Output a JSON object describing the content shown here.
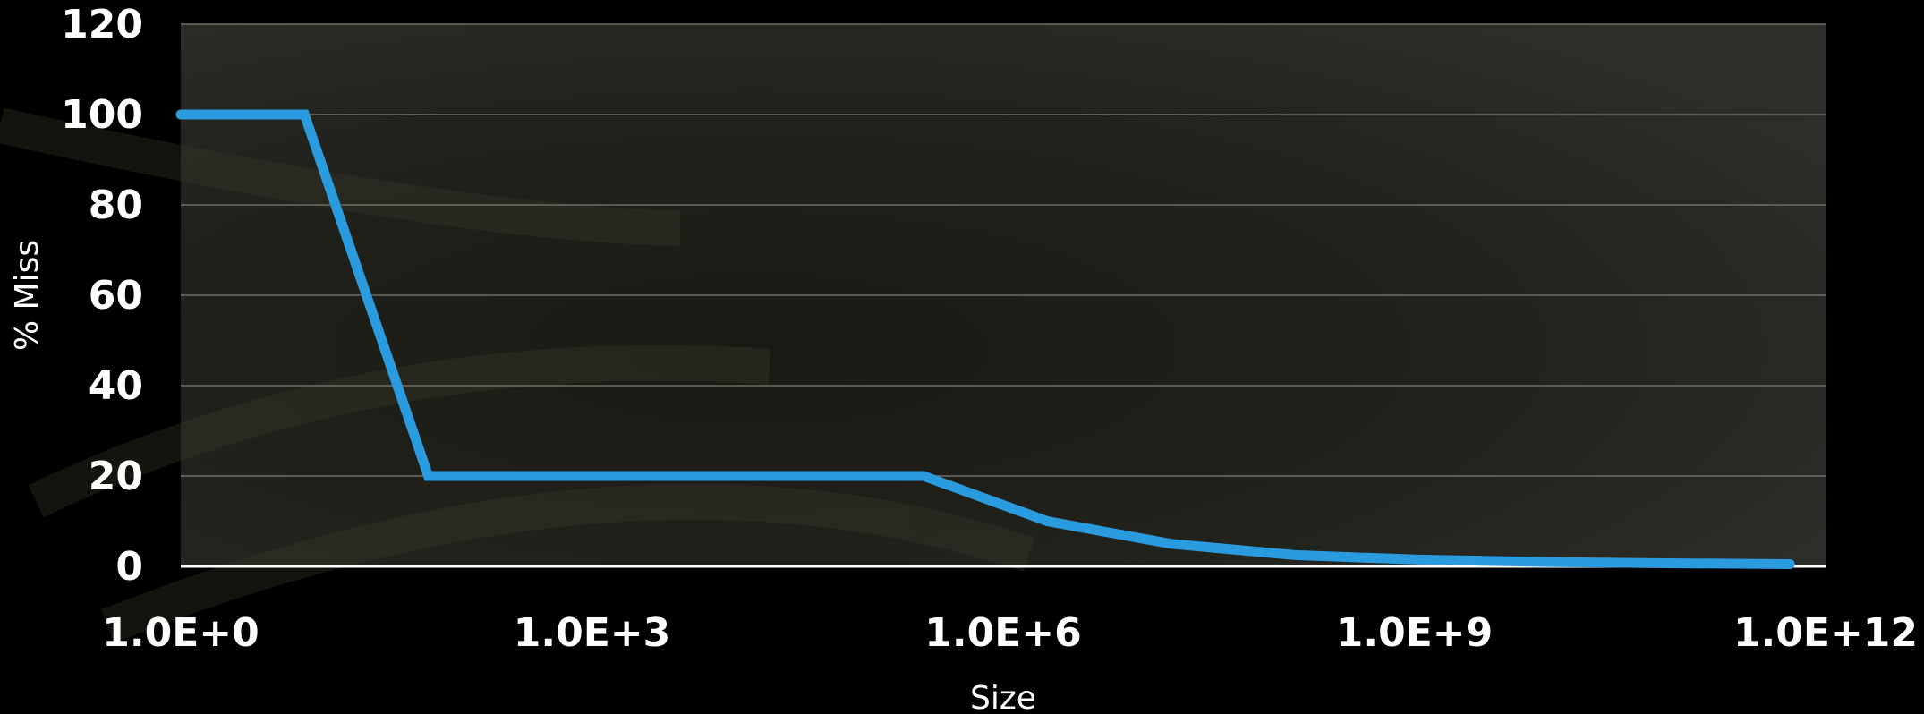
{
  "chart_data": {
    "type": "line",
    "title": "",
    "xlabel": "Size",
    "ylabel": "% Miss",
    "x_scale": "log",
    "xlim": [
      1,
      1000000000000
    ],
    "ylim": [
      0,
      120
    ],
    "x_ticks": [
      1,
      1000,
      1000000,
      1000000000,
      1000000000000
    ],
    "x_tick_labels": [
      "1.0E+0",
      "1.0E+3",
      "1.0E+6",
      "1.0E+9",
      "1.0E+12"
    ],
    "y_ticks": [
      0,
      20,
      40,
      60,
      80,
      100,
      120
    ],
    "y_tick_labels": [
      "0",
      "20",
      "40",
      "60",
      "80",
      "100",
      "120"
    ],
    "grid": true,
    "legend": "none",
    "series": [
      {
        "color": "#2b9be0",
        "x": [
          1,
          8,
          64,
          512,
          4096,
          32768,
          262144,
          2097152,
          16777216,
          134217728,
          1073741824,
          8589934592,
          68719476736,
          549755813888
        ],
        "y": [
          100,
          100,
          20,
          20,
          20,
          20,
          20,
          10,
          5,
          2.5,
          1.5,
          1,
          0.7,
          0.5
        ]
      }
    ],
    "colors": {
      "background": "#000000",
      "plot_area": "#262623",
      "gridline": "#6e6e66",
      "axis_line": "#ffffff",
      "text": "#ffffff"
    }
  }
}
